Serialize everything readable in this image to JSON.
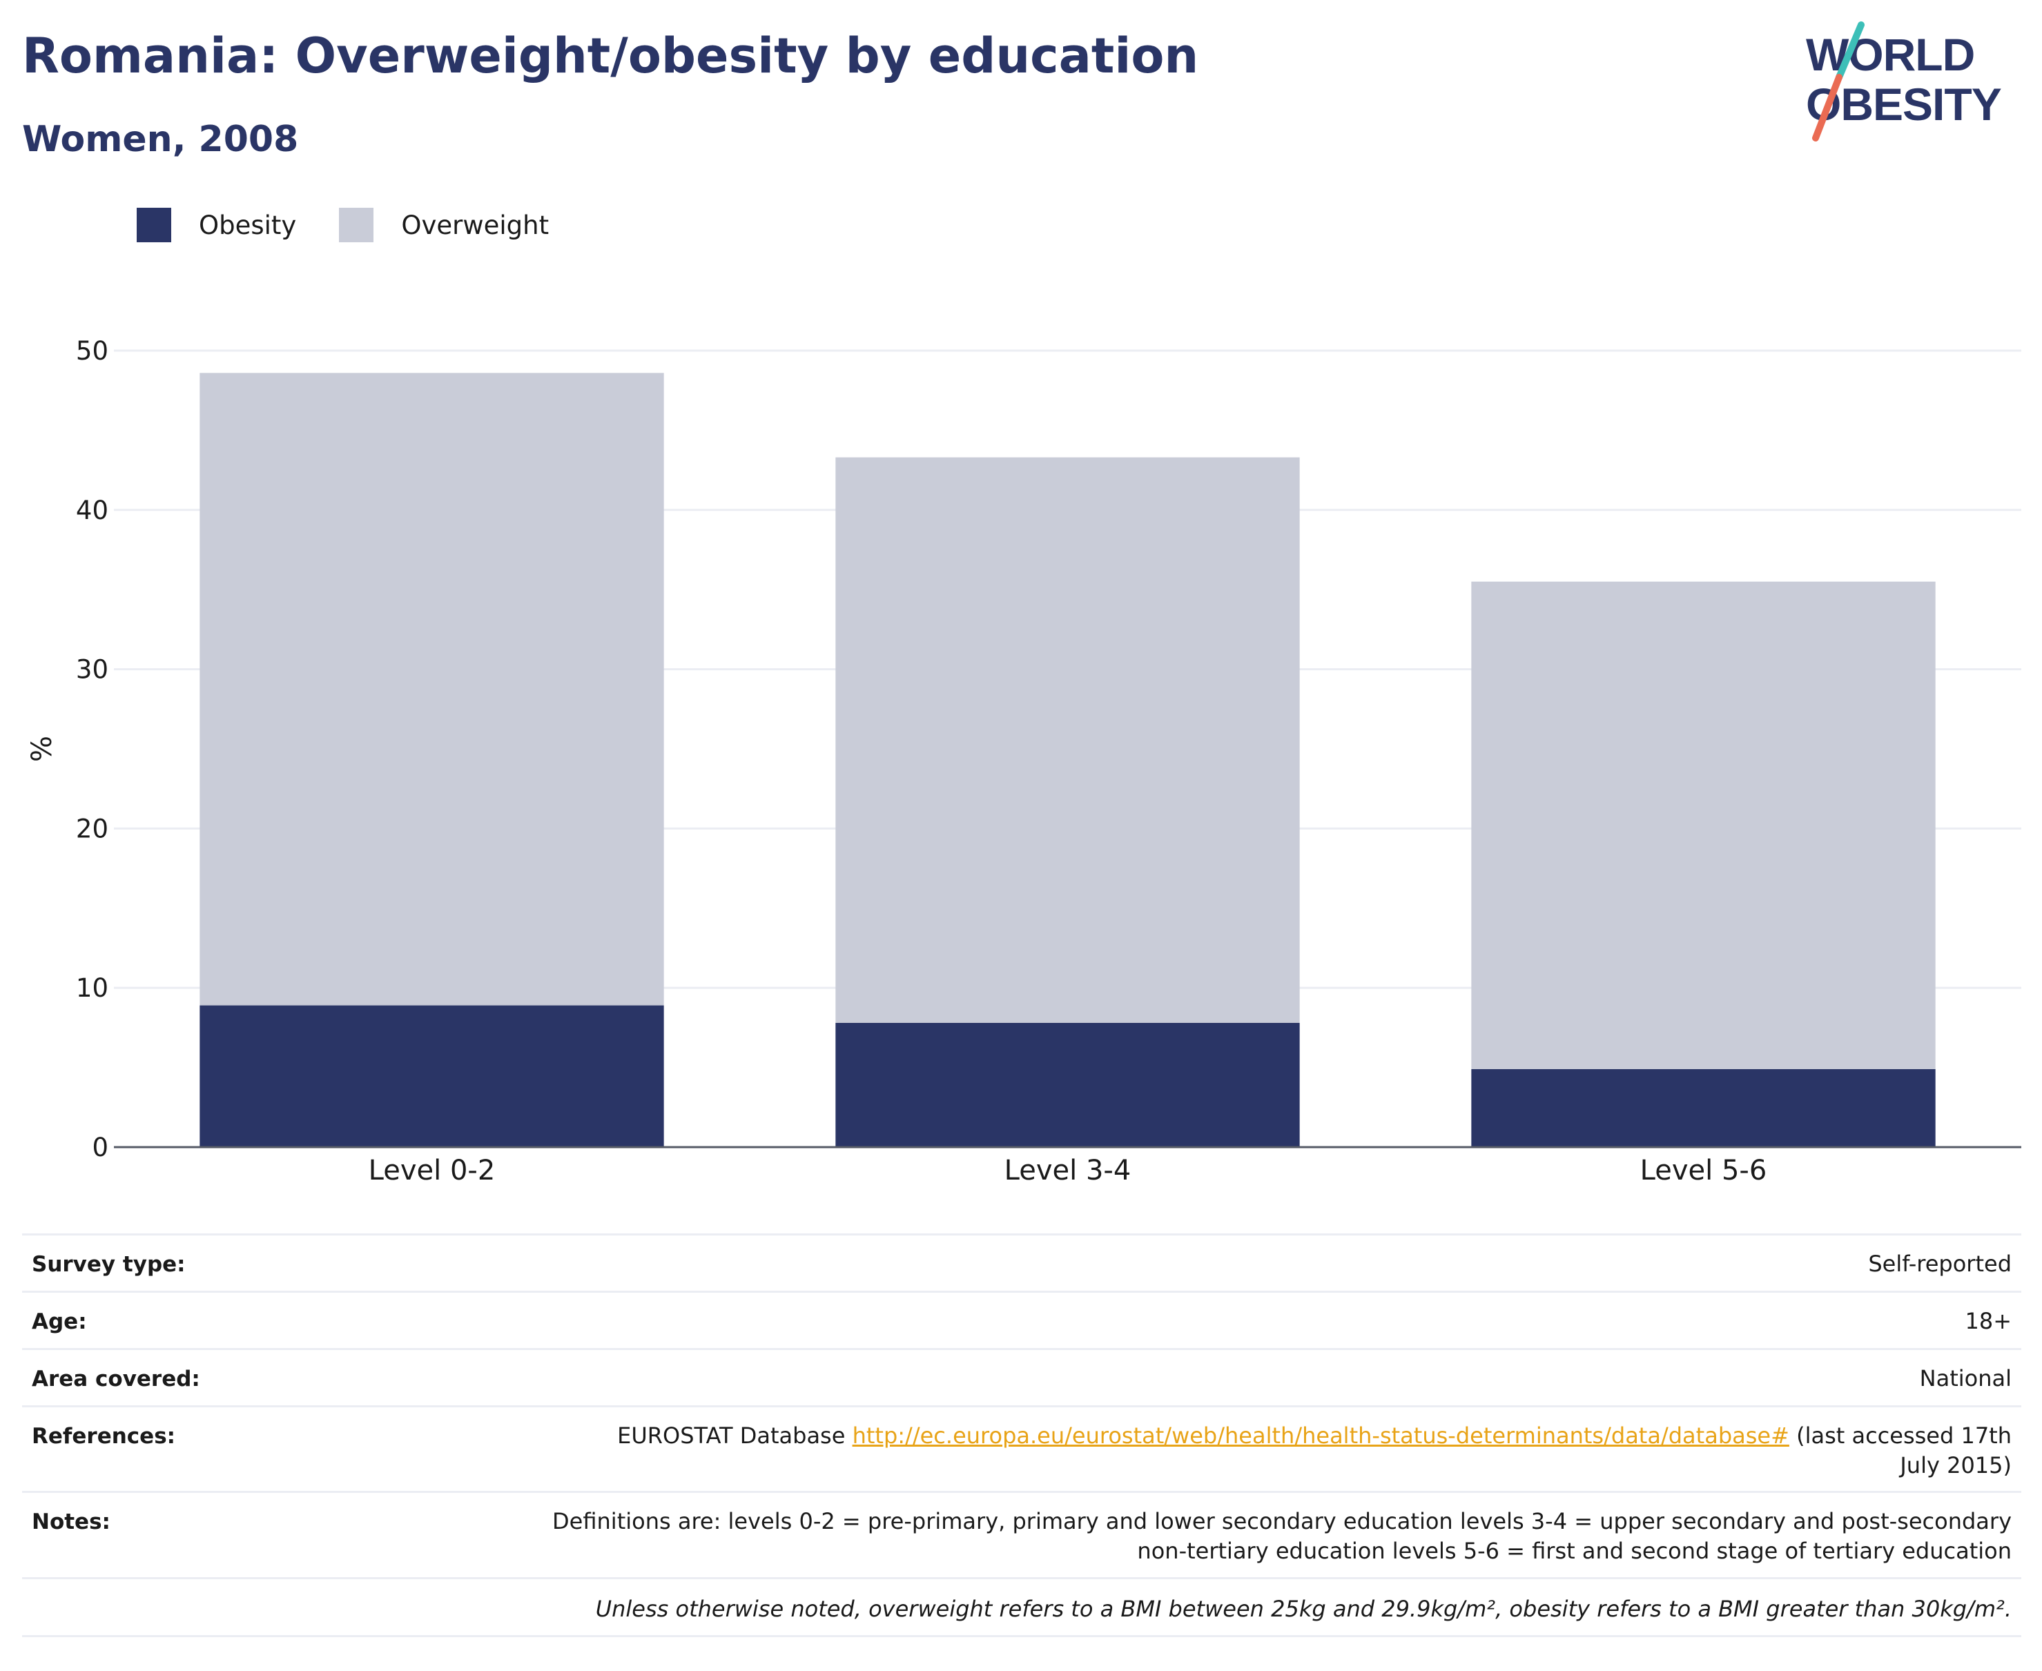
{
  "header": {
    "title": "Romania: Overweight/obesity by education",
    "subtitle": "Women, 2008"
  },
  "logo": {
    "line1": "WORLD",
    "line2": "OBESITY",
    "colors": {
      "text": "#2a3566",
      "slash_top": "#3dbfb8",
      "slash_bottom": "#ea6b53"
    }
  },
  "legend": {
    "items": [
      {
        "label": "Obesity",
        "color": "#2a3566"
      },
      {
        "label": "Overweight",
        "color": "#c9ccd8"
      }
    ]
  },
  "chart_data": {
    "type": "bar",
    "stacked": true,
    "categories": [
      "Level 0-2",
      "Level 3-4",
      "Level 5-6"
    ],
    "series": [
      {
        "name": "Obesity",
        "color": "#2a3566",
        "values": [
          8.9,
          7.8,
          4.9
        ]
      },
      {
        "name": "Overweight",
        "color": "#c9ccd8",
        "values": [
          39.7,
          35.5,
          30.6
        ]
      }
    ],
    "ylabel": "%",
    "ylim": [
      0,
      50
    ],
    "yticks": [
      0,
      10,
      20,
      30,
      40,
      50
    ],
    "grid": true,
    "legend_position": "top-left"
  },
  "info": {
    "rows": [
      {
        "label": "Survey type:",
        "value": "Self-reported"
      },
      {
        "label": "Age:",
        "value": "18+"
      },
      {
        "label": "Area covered:",
        "value": "National"
      }
    ],
    "references": {
      "label": "References:",
      "prefix": "EUROSTAT Database ",
      "link": "http://ec.europa.eu/eurostat/web/health/health-status-determinants/data/database#",
      "suffix": " (last accessed 17th July 2015)"
    },
    "notes": {
      "label": "Notes:",
      "value": "Definitions are: levels 0-2 = pre-primary, primary and lower secondary education levels 3-4 = upper secondary and post-secondary non-tertiary education levels 5-6 = first and second stage of tertiary education"
    },
    "footnote": "Unless otherwise noted, overweight refers to a BMI between 25kg and 29.9kg/m², obesity refers to a BMI greater than 30kg/m²."
  }
}
